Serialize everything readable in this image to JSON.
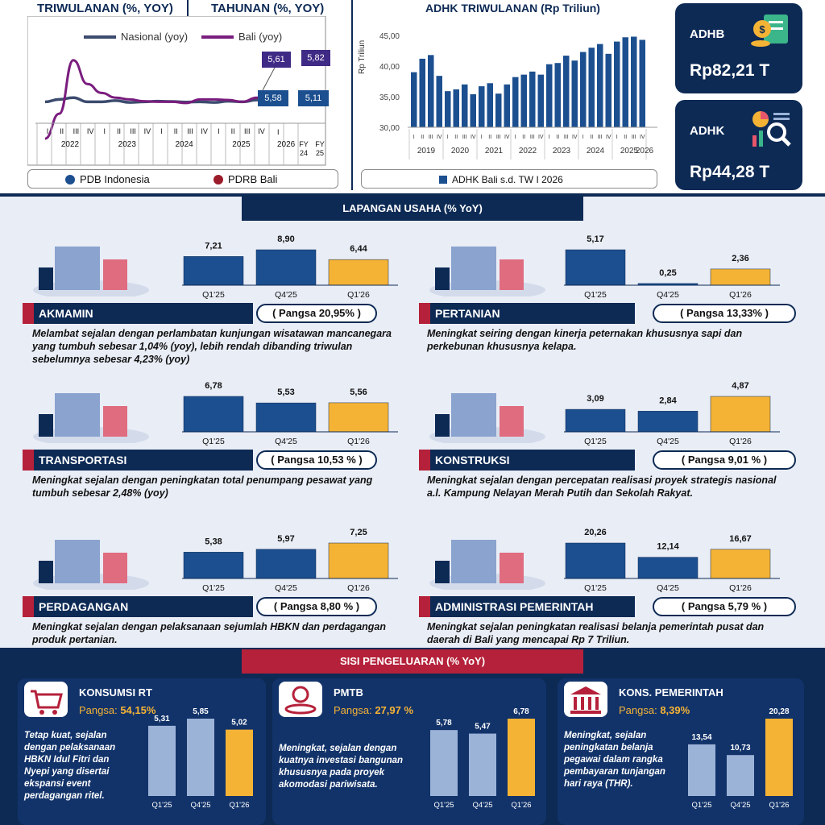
{
  "top_left": {
    "title_quarterly": "TRIWULANAN (%, YOY)",
    "title_annual": "TAHUNAN (%, YOY)",
    "legend_nasional": "Nasional (yoy)",
    "legend_bali": "Bali (yoy)",
    "label_bali_q": "5,61",
    "label_nas_q": "5,58",
    "label_bali_fy": "5,82",
    "label_nas_fy": "5,11",
    "roman": [
      "I",
      "II",
      "III",
      "IV"
    ],
    "years": [
      "2022",
      "2023",
      "2024",
      "2025",
      "2026"
    ],
    "year_2026_q": "I",
    "fy_labels": [
      "FY 24",
      "FY 25"
    ],
    "fy_tick": "I",
    "legend_pdb": "PDB Indonesia",
    "legend_pdrb": "PDRB Bali",
    "colors": {
      "nasional": "#3c4b6e",
      "bali": "#7a1d7e",
      "pdb": "#1c4f8f",
      "pdrb": "#9b1b2a"
    }
  },
  "top_mid": {
    "title": "ADHK TRIWULANAN (Rp Triliun)",
    "ylabel": "Rp Triliun",
    "legend": "ADHK Bali s.d. TW I 2026"
  },
  "cards": {
    "adhb_label": "ADHB",
    "adhb_value": "Rp82,21 T",
    "adhk_label": "ADHK",
    "adhk_value": "Rp44,28 T"
  },
  "lapangan": {
    "banner": "LAPANGAN USAHA (% YoY)",
    "periods": [
      "Q1'25",
      "Q4'25",
      "Q1'26"
    ],
    "sectors": [
      {
        "name": "AKMAMIN",
        "pangsa": "( Pangsa 20,95% )",
        "values": [
          "7,21",
          "8,90",
          "6,44"
        ],
        "desc": "Melambat sejalan dengan perlambatan kunjungan wisatawan mancanegara yang tumbuh sebesar 1,04% (yoy), lebih rendah dibanding triwulan sebelumnya sebesar 4,23% (yoy)"
      },
      {
        "name": "PERTANIAN",
        "pangsa": "( Pangsa 13,33% )",
        "values": [
          "5,17",
          "0,25",
          "2,36"
        ],
        "desc": "Meningkat seiring dengan kinerja peternakan khususnya sapi dan perkebunan khususnya kelapa."
      },
      {
        "name": "TRANSPORTASI",
        "pangsa": "( Pangsa 10,53 % )",
        "values": [
          "6,78",
          "5,53",
          "5,56"
        ],
        "desc": "Meningkat sejalan dengan peningkatan total penumpang pesawat yang tumbuh sebesar 2,48% (yoy)"
      },
      {
        "name": "KONSTRUKSI",
        "pangsa": "( Pangsa 9,01 % )",
        "values": [
          "3,09",
          "2,84",
          "4,87"
        ],
        "desc": "Meningkat sejalan dengan percepatan realisasi proyek strategis nasional a.l. Kampung Nelayan Merah Putih dan Sekolah Rakyat."
      },
      {
        "name": "PERDAGANGAN",
        "pangsa": "( Pangsa 8,80 % )",
        "values": [
          "5,38",
          "5,97",
          "7,25"
        ],
        "desc": "Meningkat sejalan dengan pelaksanaan sejumlah HBKN dan perdagangan produk pertanian."
      },
      {
        "name": "ADMINISTRASI PEMERINTAH",
        "pangsa": "( Pangsa 5,79 % )",
        "values": [
          "20,26",
          "12,14",
          "16,67"
        ],
        "desc": "Meningkat sejalan peningkatan realisasi belanja pemerintah pusat dan daerah di Bali yang mencapai Rp 7 Triliun."
      }
    ]
  },
  "pengeluaran": {
    "banner": "SISI PENGELUARAN (% YoY)",
    "periods": [
      "Q1'25",
      "Q4'25",
      "Q1'26"
    ],
    "pangsa_prefix": "Pangsa: ",
    "items": [
      {
        "name": "KONSUMSI RT",
        "pangsa": "54,15%",
        "values": [
          "5,31",
          "5,85",
          "5,02"
        ],
        "desc": "Tetap kuat, sejalan dengan pelaksanaan HBKN Idul Fitri dan Nyepi yang disertai ekspansi event perdagangan ritel."
      },
      {
        "name": "PMTB",
        "pangsa": "27,97 %",
        "values": [
          "5,78",
          "5,47",
          "6,78"
        ],
        "desc": "Meningkat, sejalan dengan kuatnya investasi bangunan khususnya pada proyek akomodasi pariwisata."
      },
      {
        "name": "KONS. PEMERINTAH",
        "pangsa": "8,39%",
        "values": [
          "13,54",
          "10,73",
          "20,28"
        ],
        "desc": "Meningkat, sejalan peningkatan belanja pegawai dalam rangka pembayaran tunjangan hari raya (THR)."
      }
    ]
  },
  "chart_data": [
    {
      "type": "line",
      "title": "TRIWULANAN (%, YOY)",
      "categories": [
        "I-2022",
        "II-2022",
        "III-2022",
        "IV-2022",
        "I-2023",
        "II-2023",
        "III-2023",
        "IV-2023",
        "I-2024",
        "II-2024",
        "III-2024",
        "IV-2024",
        "I-2025",
        "II-2025",
        "III-2025",
        "IV-2025",
        "I-2026"
      ],
      "series": [
        {
          "name": "Nasional (yoy)",
          "values": [
            5.0,
            5.4,
            5.7,
            5.0,
            5.0,
            5.2,
            4.9,
            5.0,
            5.1,
            5.05,
            4.95,
            5.0,
            4.9,
            5.1,
            5.0,
            5.3,
            5.58
          ]
        },
        {
          "name": "Bali (yoy)",
          "values": [
            -1.2,
            3.0,
            12.0,
            8.0,
            6.5,
            5.7,
            5.4,
            5.1,
            5.0,
            5.0,
            4.8,
            5.4,
            5.4,
            5.3,
            5.0,
            5.7,
            5.61
          ]
        }
      ],
      "fy_series": [
        {
          "name": "Nasional (yoy)",
          "categories": [
            "FY 24",
            "FY 25"
          ],
          "values": [
            5.03,
            5.11
          ]
        },
        {
          "name": "Bali (yoy)",
          "categories": [
            "FY 24",
            "FY 25"
          ],
          "values": [
            5.48,
            5.82
          ]
        }
      ]
    },
    {
      "type": "bar",
      "title": "ADHK TRIWULANAN (Rp Triliun)",
      "ylabel": "Rp Triliun",
      "ylim": [
        30,
        45
      ],
      "yticks": [
        "30,00",
        "35,00",
        "40,00",
        "45,00"
      ],
      "years": [
        "2019",
        "2020",
        "2021",
        "2022",
        "2023",
        "2024",
        "2025",
        "2026"
      ],
      "series": [
        {
          "name": "ADHK Bali s.d. TW I 2026",
          "values": [
            39.0,
            41.2,
            41.8,
            38.4,
            35.9,
            36.2,
            37.0,
            35.4,
            36.7,
            37.2,
            35.5,
            37.0,
            38.2,
            38.6,
            39.1,
            38.6,
            40.3,
            40.5,
            41.7,
            40.9,
            42.3,
            43.0,
            43.6,
            42.0,
            44.0,
            44.7,
            44.8,
            44.28
          ]
        }
      ],
      "ticks_per_quarter": [
        "I",
        "II",
        "III",
        "IV"
      ]
    },
    {
      "type": "bar",
      "title": "LAPANGAN USAHA (% YoY)",
      "categories": [
        "Q1'25",
        "Q4'25",
        "Q1'26"
      ],
      "groups": [
        {
          "name": "AKMAMIN",
          "values": [
            7.21,
            8.9,
            6.44
          ]
        },
        {
          "name": "PERTANIAN",
          "values": [
            5.17,
            0.25,
            2.36
          ]
        },
        {
          "name": "TRANSPORTASI",
          "values": [
            6.78,
            5.53,
            5.56
          ]
        },
        {
          "name": "KONSTRUKSI",
          "values": [
            3.09,
            2.84,
            4.87
          ]
        },
        {
          "name": "PERDAGANGAN",
          "values": [
            5.38,
            5.97,
            7.25
          ]
        },
        {
          "name": "ADMINISTRASI PEMERINTAH",
          "values": [
            20.26,
            12.14,
            16.67
          ]
        }
      ]
    },
    {
      "type": "bar",
      "title": "SISI PENGELUARAN (% YoY)",
      "categories": [
        "Q1'25",
        "Q4'25",
        "Q1'26"
      ],
      "groups": [
        {
          "name": "KONSUMSI RT",
          "values": [
            5.31,
            5.85,
            5.02
          ]
        },
        {
          "name": "PMTB",
          "values": [
            5.78,
            5.47,
            6.78
          ]
        },
        {
          "name": "KONS. PEMERINTAH",
          "values": [
            13.54,
            10.73,
            20.28
          ]
        }
      ]
    }
  ]
}
